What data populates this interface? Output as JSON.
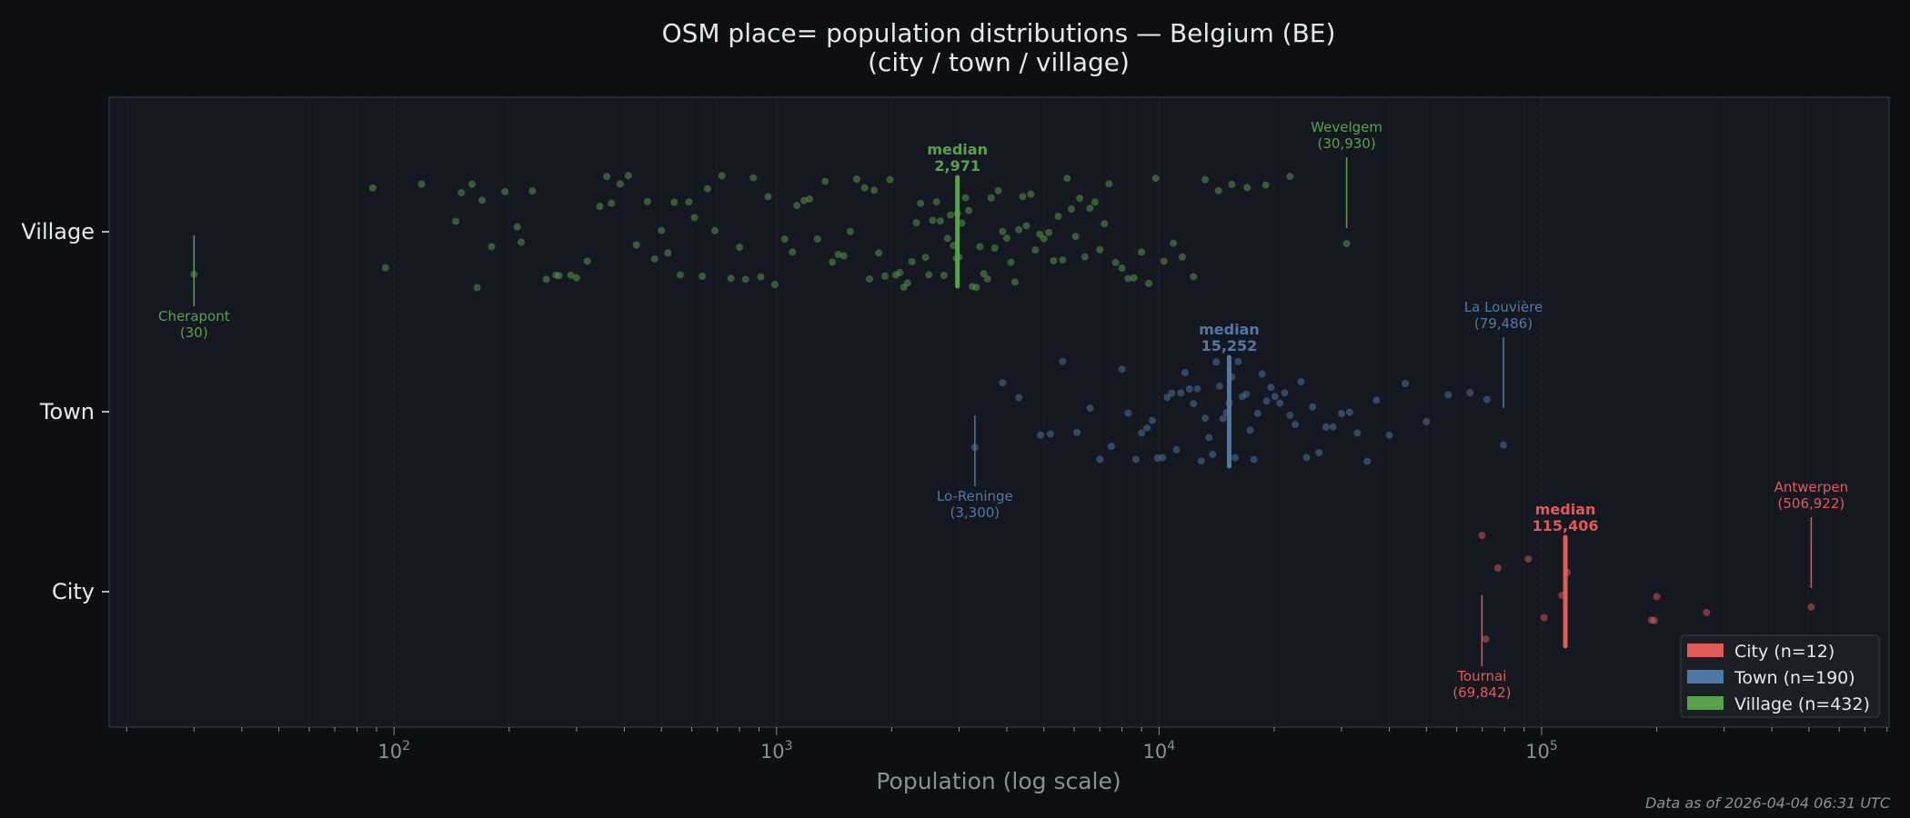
{
  "chart_data": {
    "type": "scatter",
    "title": "OSM place= population distributions — Belgium (BE)",
    "subtitle": "(city / town / village)",
    "xlabel": "Population (log scale)",
    "xscale": "log",
    "xlim": [
      18,
      810000
    ],
    "xticks": [
      {
        "base": "10",
        "exp": "2",
        "value": 100
      },
      {
        "base": "10",
        "exp": "3",
        "value": 1000
      },
      {
        "base": "10",
        "exp": "4",
        "value": 10000
      },
      {
        "base": "10",
        "exp": "5",
        "value": 100000
      }
    ],
    "categories": [
      "Village",
      "Town",
      "City"
    ],
    "grid": "vertical, major and minor",
    "legend_placement": "lower-right",
    "footnote": "Data as of 2026-04-04 06:31 UTC",
    "series": [
      {
        "name": "City",
        "legend": "City  (n=12)",
        "color": "#e05a5a",
        "median": 115406,
        "median_label": "median",
        "median_text": "115,406",
        "values": [
          69842,
          71500,
          76900,
          92300,
          101500,
          113000,
          116600,
          194000,
          197000,
          200000,
          270000,
          506922
        ],
        "annotations": [
          {
            "name": "Tournai",
            "value": 69842,
            "text": "(69,842)",
            "side": "below"
          },
          {
            "name": "Antwerpen",
            "value": 506922,
            "text": "(506,922)",
            "side": "above"
          }
        ]
      },
      {
        "name": "Town",
        "legend": "Town  (n=190)",
        "color": "#4e79a7",
        "median": 15252,
        "median_label": "median",
        "median_text": "15,252",
        "values": [
          3300,
          3900,
          4300,
          4900,
          5200,
          5600,
          6100,
          6600,
          7000,
          7500,
          8000,
          8300,
          8700,
          9000,
          9300,
          9600,
          9900,
          10200,
          10500,
          10800,
          11100,
          11400,
          11700,
          12000,
          12300,
          12600,
          12900,
          13200,
          13500,
          13800,
          14100,
          14400,
          14700,
          15000,
          15252,
          15500,
          15800,
          16100,
          16500,
          16900,
          17300,
          17700,
          18100,
          18600,
          19100,
          19600,
          20100,
          20700,
          21300,
          22000,
          22700,
          23500,
          24300,
          25200,
          26200,
          27300,
          28500,
          30000,
          31500,
          33000,
          35000,
          37000,
          40000,
          44000,
          50000,
          57000,
          65000,
          72000,
          79486
        ],
        "annotations": [
          {
            "name": "Lo-Reninge",
            "value": 3300,
            "text": "(3,300)",
            "side": "below"
          },
          {
            "name": "La Louvière",
            "value": 79486,
            "text": "(79,486)",
            "side": "above"
          }
        ]
      },
      {
        "name": "Village",
        "legend": "Village  (n=432)",
        "color": "#59a14f",
        "median": 2971,
        "median_label": "median",
        "median_text": "2,971",
        "values": [
          30,
          88,
          95,
          118,
          145,
          150,
          160,
          165,
          170,
          180,
          195,
          210,
          215,
          230,
          250,
          265,
          270,
          290,
          300,
          320,
          345,
          360,
          370,
          390,
          410,
          430,
          460,
          480,
          500,
          520,
          540,
          560,
          590,
          610,
          640,
          660,
          690,
          720,
          760,
          800,
          830,
          870,
          910,
          950,
          990,
          1050,
          1100,
          1130,
          1180,
          1220,
          1280,
          1340,
          1400,
          1450,
          1500,
          1560,
          1620,
          1700,
          1750,
          1800,
          1850,
          1920,
          1980,
          2050,
          2100,
          2150,
          2200,
          2260,
          2320,
          2380,
          2450,
          2500,
          2560,
          2620,
          2680,
          2740,
          2800,
          2850,
          2900,
          2950,
          2971,
          3000,
          3050,
          3120,
          3180,
          3250,
          3330,
          3400,
          3480,
          3560,
          3640,
          3720,
          3800,
          3900,
          4000,
          4100,
          4200,
          4300,
          4400,
          4500,
          4620,
          4750,
          4880,
          5000,
          5150,
          5300,
          5450,
          5600,
          5750,
          5900,
          6050,
          6200,
          6400,
          6600,
          6800,
          7000,
          7200,
          7400,
          7700,
          8000,
          8300,
          8600,
          9000,
          9400,
          9800,
          10300,
          10900,
          11500,
          12300,
          13200,
          14300,
          15500,
          17000,
          19000,
          22000,
          30930
        ],
        "annotations": [
          {
            "name": "Cherapont",
            "value": 30,
            "text": "(30)",
            "side": "below"
          },
          {
            "name": "Wevelgem",
            "value": 30930,
            "text": "(30,930)",
            "side": "above"
          }
        ]
      }
    ]
  }
}
